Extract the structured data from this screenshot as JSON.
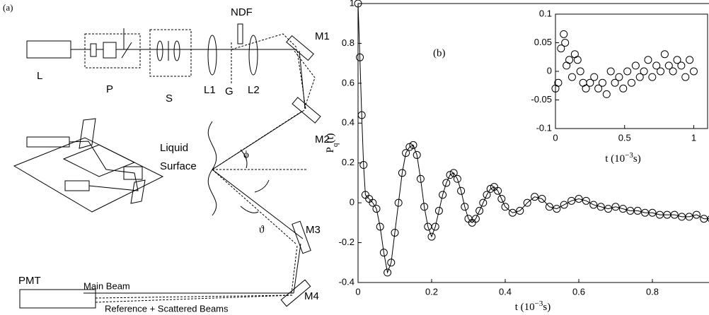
{
  "diagram": {
    "panel": "(a)",
    "laser": "L",
    "polarizer": "P",
    "spatial_filter": "S",
    "lens1": "L1",
    "grating": "G",
    "lens2": "L2",
    "filter": "NDF",
    "mirror1": "M1",
    "mirror2": "M2",
    "mirror3": "M3",
    "mirror4": "M4",
    "surface_line1": "Liquid",
    "surface_line2": "Surface",
    "incidence_angle": "ϕ",
    "scatter_angle": "ϑ",
    "detector": "PMT",
    "main_beam": "Main Beam",
    "other_beams": "Reference + Scattered Beams"
  },
  "chart_data": [
    {
      "type": "scatter",
      "annotation": "(b)",
      "xlabel": [
        "t (10",
        "−3",
        "s)"
      ],
      "ylabel": [
        "P",
        "q",
        "(t)"
      ],
      "xlim": [
        0,
        1
      ],
      "ylim": [
        -0.4,
        1
      ],
      "xticks": [
        0,
        0.2,
        0.4,
        0.6,
        0.8
      ],
      "yticks": [
        -0.4,
        -0.2,
        0,
        0.2,
        0.4,
        0.6,
        0.8,
        1
      ],
      "x": [
        0,
        0.005,
        0.01,
        0.015,
        0.02,
        0.03,
        0.04,
        0.05,
        0.06,
        0.07,
        0.08,
        0.09,
        0.1,
        0.11,
        0.12,
        0.13,
        0.14,
        0.15,
        0.16,
        0.17,
        0.18,
        0.19,
        0.2,
        0.21,
        0.22,
        0.23,
        0.24,
        0.25,
        0.26,
        0.27,
        0.28,
        0.29,
        0.3,
        0.31,
        0.32,
        0.33,
        0.34,
        0.35,
        0.36,
        0.37,
        0.38,
        0.39,
        0.4,
        0.42,
        0.44,
        0.46,
        0.48,
        0.5,
        0.52,
        0.54,
        0.56,
        0.58,
        0.6,
        0.62,
        0.64,
        0.66,
        0.68,
        0.7,
        0.72,
        0.74,
        0.76,
        0.78,
        0.8,
        0.82,
        0.84,
        0.86,
        0.88,
        0.9,
        0.92,
        0.94,
        0.96
      ],
      "values": [
        1,
        0.73,
        0.44,
        0.19,
        0.04,
        0.02,
        0.0,
        -0.03,
        -0.12,
        -0.25,
        -0.35,
        -0.3,
        -0.15,
        0.0,
        0.15,
        0.25,
        0.28,
        0.29,
        0.24,
        0.12,
        -0.02,
        -0.12,
        -0.17,
        -0.12,
        -0.04,
        0.04,
        0.1,
        0.14,
        0.15,
        0.12,
        0.06,
        -0.02,
        -0.08,
        -0.1,
        -0.08,
        -0.04,
        0.0,
        0.04,
        0.07,
        0.08,
        0.06,
        0.02,
        -0.02,
        -0.05,
        -0.04,
        0.0,
        0.03,
        0.02,
        -0.02,
        -0.03,
        -0.01,
        0.01,
        0.02,
        0.01,
        -0.01,
        -0.02,
        -0.03,
        -0.02,
        -0.03,
        -0.04,
        -0.04,
        -0.05,
        -0.05,
        -0.06,
        -0.06,
        -0.06,
        -0.07,
        -0.07,
        -0.06,
        -0.08,
        -0.08
      ],
      "color": "#000000"
    },
    {
      "type": "scatter",
      "xlabel": [
        "t (10",
        "−3",
        "s)"
      ],
      "xlim": [
        0,
        1.1
      ],
      "ylim": [
        -0.1,
        0.1
      ],
      "xticks": [
        0,
        0.5,
        1
      ],
      "yticks": [
        -0.1,
        -0.05,
        0,
        0.05,
        0.1
      ],
      "x": [
        0,
        0.02,
        0.04,
        0.06,
        0.07,
        0.08,
        0.1,
        0.12,
        0.14,
        0.16,
        0.18,
        0.2,
        0.22,
        0.25,
        0.28,
        0.31,
        0.34,
        0.37,
        0.4,
        0.43,
        0.46,
        0.49,
        0.52,
        0.55,
        0.58,
        0.61,
        0.64,
        0.67,
        0.7,
        0.73,
        0.76,
        0.79,
        0.82,
        0.85,
        0.88,
        0.91,
        0.94,
        0.97,
        1.0
      ],
      "values": [
        -0.03,
        -0.02,
        0.04,
        0.065,
        0.05,
        0.01,
        0.02,
        -0.01,
        0.03,
        0.02,
        0.0,
        -0.02,
        -0.03,
        -0.02,
        -0.01,
        -0.03,
        -0.02,
        -0.04,
        0.0,
        -0.02,
        -0.01,
        -0.03,
        0.0,
        -0.02,
        0.01,
        -0.01,
        0.0,
        0.02,
        -0.01,
        0.01,
        0.0,
        0.03,
        0.01,
        0.0,
        0.02,
        0.01,
        -0.01,
        0.02,
        0.0
      ],
      "color": "#000000"
    }
  ]
}
